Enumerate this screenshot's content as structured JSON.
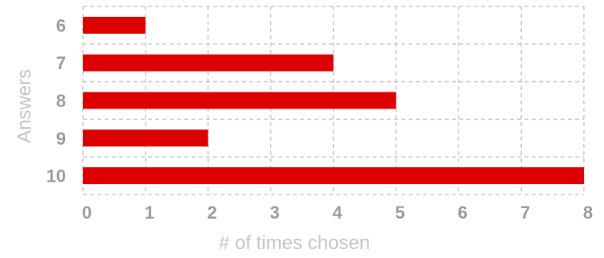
{
  "chart_data": {
    "type": "bar",
    "orientation": "horizontal",
    "categories": [
      "6",
      "7",
      "8",
      "9",
      "10"
    ],
    "values": [
      1,
      4,
      5,
      2,
      8
    ],
    "xlabel": "# of times chosen",
    "ylabel": "Answers",
    "xlim": [
      0,
      8
    ],
    "xticks": [
      "0",
      "1",
      "2",
      "3",
      "4",
      "5",
      "6",
      "7",
      "8"
    ],
    "grid": true,
    "legend": "none",
    "bar_color": "#dd0000"
  }
}
